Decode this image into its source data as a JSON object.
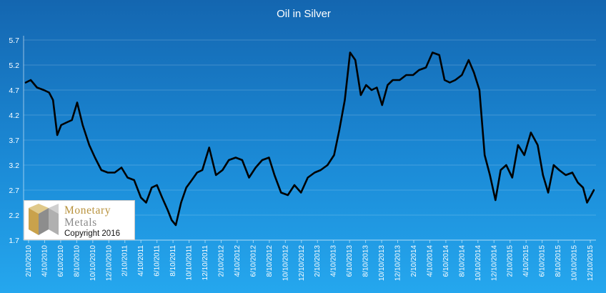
{
  "colors": {
    "line": "#000000",
    "text": "#ffffff",
    "logo_gold": "#b8923d",
    "logo_gray": "#8a8a8a"
  },
  "logo": {
    "line1": "Monetary",
    "line2": "Metals",
    "copyright": "Copyright 2016"
  },
  "chart_data": {
    "type": "line",
    "title": "Oil in Silver",
    "xlabel": "",
    "ylabel": "",
    "ylim": [
      1.7,
      5.7
    ],
    "yticks": [
      "1.7",
      "2.2",
      "2.7",
      "3.2",
      "3.7",
      "4.2",
      "4.7",
      "5.2",
      "5.7"
    ],
    "xticks": [
      "2/10/2010",
      "4/10/2010",
      "6/10/2010",
      "8/10/2010",
      "10/10/2010",
      "12/10/2010",
      "2/10/2011",
      "4/10/2011",
      "6/10/2011",
      "8/10/2011",
      "10/10/2011",
      "12/10/2011",
      "2/10/2012",
      "4/10/2012",
      "6/10/2012",
      "8/10/2012",
      "10/10/2012",
      "12/10/2012",
      "2/10/2013",
      "4/10/2013",
      "6/10/2013",
      "8/10/2013",
      "10/10/2013",
      "12/10/2013",
      "2/10/2014",
      "4/10/2014",
      "6/10/2014",
      "8/10/2014",
      "10/10/2014",
      "12/10/2014",
      "2/10/2015",
      "4/10/2015",
      "6/10/2015",
      "8/10/2015",
      "10/10/2015",
      "12/10/2015"
    ],
    "grid": true,
    "legend": "none",
    "series": [
      {
        "x": [
          "2010-02-10",
          "2010-03-01",
          "2010-03-25",
          "2010-04-20",
          "2010-05-10",
          "2010-05-25",
          "2010-06-10",
          "2010-06-25",
          "2010-07-15",
          "2010-08-05",
          "2010-08-25",
          "2010-09-15",
          "2010-10-10",
          "2010-11-01",
          "2010-11-25",
          "2010-12-20",
          "2011-01-15",
          "2011-02-10",
          "2011-03-05",
          "2011-03-30",
          "2011-04-25",
          "2011-05-15",
          "2011-06-05",
          "2011-06-25",
          "2011-07-15",
          "2011-08-05",
          "2011-08-20",
          "2011-09-05",
          "2011-09-25",
          "2011-10-15",
          "2011-11-05",
          "2011-11-25",
          "2011-12-15",
          "2012-01-10",
          "2012-02-05",
          "2012-03-01",
          "2012-03-25",
          "2012-04-20",
          "2012-05-15",
          "2012-06-10",
          "2012-07-05",
          "2012-07-30",
          "2012-08-25",
          "2012-09-15",
          "2012-10-10",
          "2012-11-05",
          "2012-11-30",
          "2012-12-25",
          "2013-01-20",
          "2013-02-15",
          "2013-03-10",
          "2013-04-05",
          "2013-04-30",
          "2013-05-20",
          "2013-06-10",
          "2013-06-30",
          "2013-07-20",
          "2013-08-10",
          "2013-08-30",
          "2013-09-20",
          "2013-10-10",
          "2013-10-30",
          "2013-11-20",
          "2013-12-10",
          "2014-01-05",
          "2014-01-30",
          "2014-02-25",
          "2014-03-20",
          "2014-04-15",
          "2014-05-10",
          "2014-06-05",
          "2014-06-25",
          "2014-07-15",
          "2014-08-05",
          "2014-08-30",
          "2014-09-25",
          "2014-10-15",
          "2014-11-05",
          "2014-11-25",
          "2014-12-15",
          "2015-01-05",
          "2015-01-25",
          "2015-02-15",
          "2015-03-10",
          "2015-04-01",
          "2015-04-25",
          "2015-05-20",
          "2015-06-15",
          "2015-07-05",
          "2015-07-25",
          "2015-08-15",
          "2015-09-05",
          "2015-09-30",
          "2015-10-25",
          "2015-11-15",
          "2015-12-05",
          "2015-12-20",
          "2016-01-05",
          "2016-01-15"
        ],
        "y": [
          4.85,
          4.9,
          4.75,
          4.7,
          4.65,
          4.5,
          3.8,
          4.0,
          4.05,
          4.1,
          4.45,
          4.0,
          3.6,
          3.35,
          3.1,
          3.05,
          3.05,
          3.15,
          2.95,
          2.9,
          2.55,
          2.45,
          2.75,
          2.8,
          2.55,
          2.3,
          2.1,
          2.0,
          2.45,
          2.75,
          2.9,
          3.05,
          3.1,
          3.55,
          3.0,
          3.1,
          3.3,
          3.35,
          3.3,
          2.95,
          3.15,
          3.3,
          3.35,
          3.0,
          2.65,
          2.6,
          2.8,
          2.65,
          2.95,
          3.05,
          3.1,
          3.2,
          3.4,
          3.9,
          4.5,
          5.45,
          5.3,
          4.6,
          4.8,
          4.7,
          4.75,
          4.4,
          4.8,
          4.9,
          4.9,
          5.0,
          5.0,
          5.1,
          5.15,
          5.45,
          5.4,
          4.9,
          4.85,
          4.9,
          5.0,
          5.3,
          5.05,
          4.7,
          3.4,
          3.0,
          2.5,
          3.1,
          3.2,
          2.95,
          3.6,
          3.4,
          3.85,
          3.6,
          3.0,
          2.65,
          3.2,
          3.1,
          3.0,
          3.05,
          2.85,
          2.75,
          2.45,
          2.6,
          2.7
        ]
      }
    ]
  }
}
